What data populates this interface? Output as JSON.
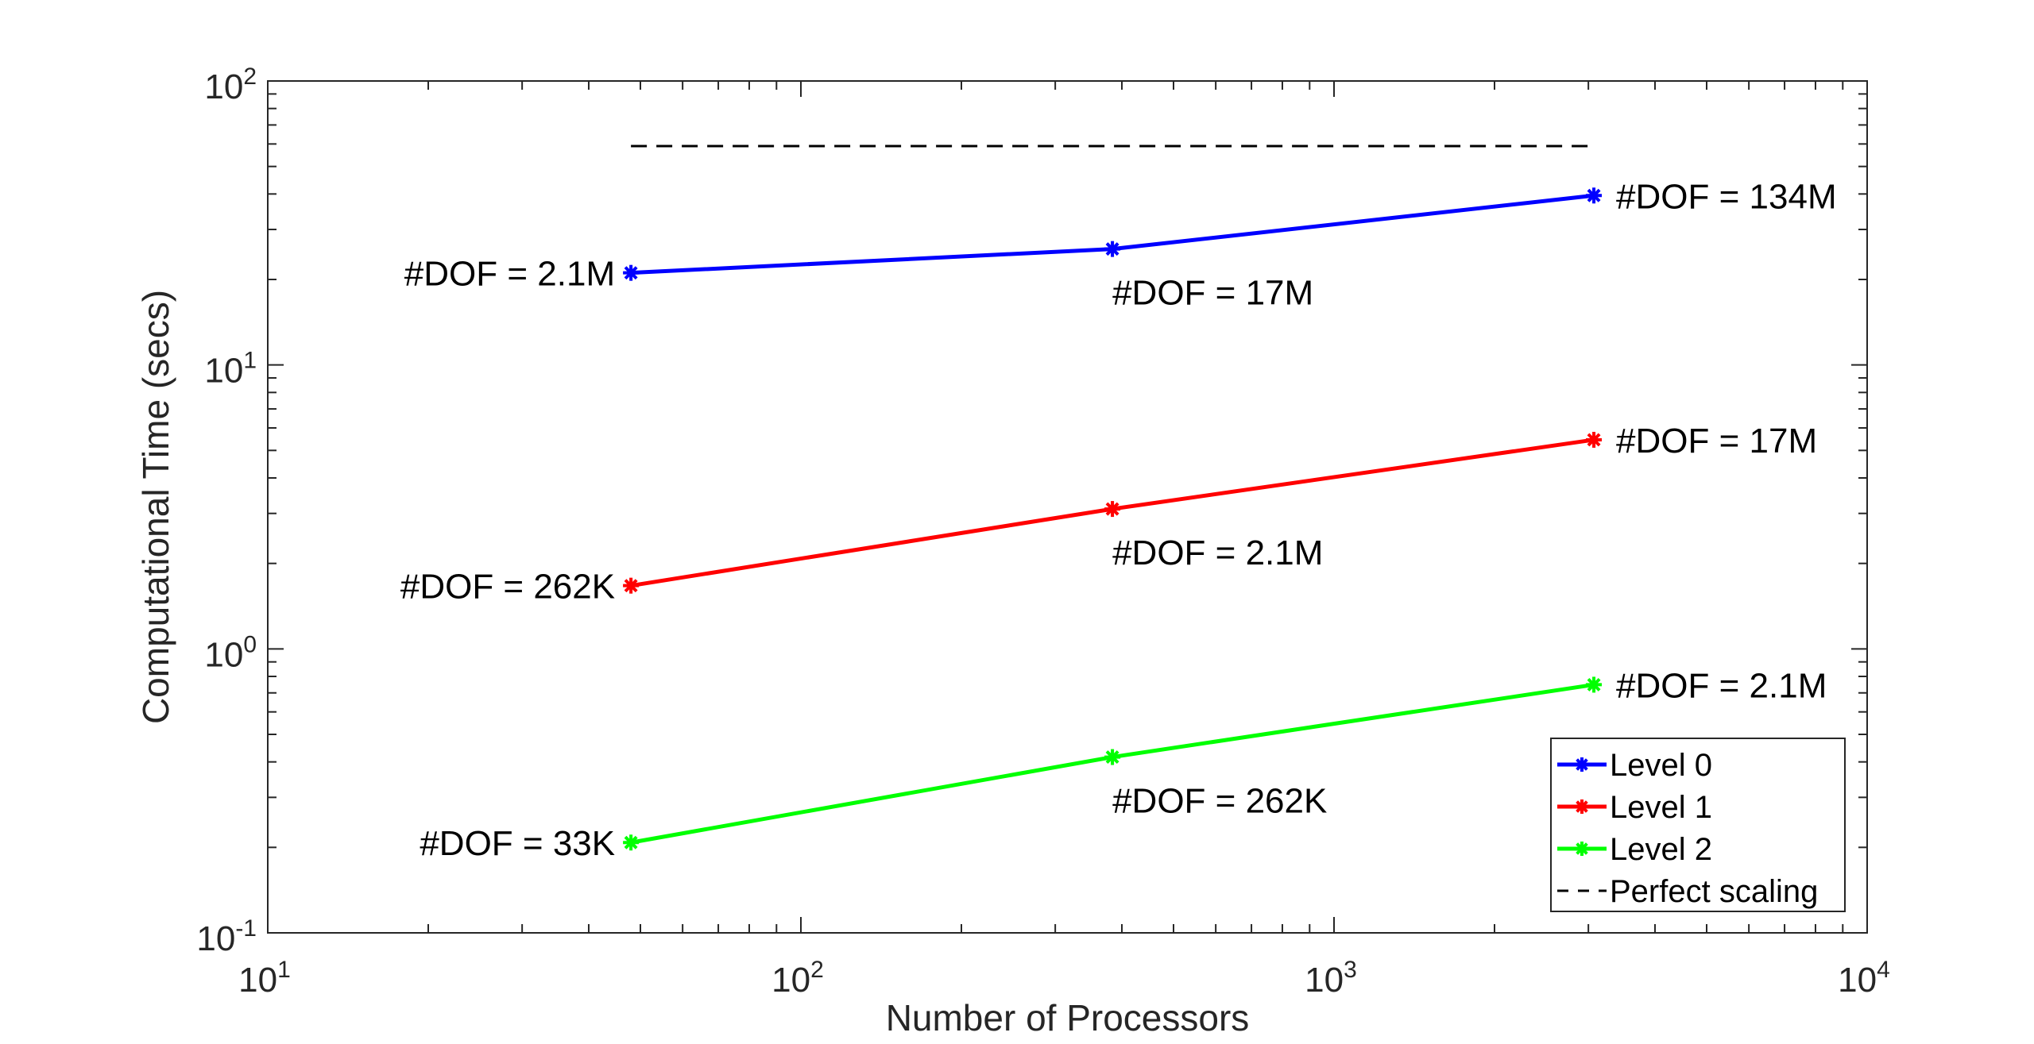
{
  "chart_data": {
    "type": "line",
    "xscale": "log",
    "yscale": "log",
    "xlim": [
      10,
      10000
    ],
    "ylim": [
      0.1,
      100
    ],
    "xlabel": "Number of Processors",
    "ylabel": "Computational Time (secs)",
    "x_ticks": [
      {
        "value": 10,
        "base": "10",
        "exp": "1"
      },
      {
        "value": 100,
        "base": "10",
        "exp": "2"
      },
      {
        "value": 1000,
        "base": "10",
        "exp": "3"
      },
      {
        "value": 10000,
        "base": "10",
        "exp": "4"
      }
    ],
    "y_ticks": [
      {
        "value": 0.1,
        "base": "10",
        "exp": "-1"
      },
      {
        "value": 1,
        "base": "10",
        "exp": "0"
      },
      {
        "value": 10,
        "base": "10",
        "exp": "1"
      },
      {
        "value": 100,
        "base": "10",
        "exp": "2"
      }
    ],
    "x": [
      48,
      384,
      3072
    ],
    "series": [
      {
        "name": "Level 0",
        "color": "#0000ff",
        "marker": "asterisk",
        "values": [
          21.1,
          25.6,
          39.5
        ],
        "labels": [
          "#DOF = 2.1M",
          "#DOF = 17M",
          "#DOF = 134M"
        ]
      },
      {
        "name": "Level 1",
        "color": "#ff0000",
        "marker": "asterisk",
        "values": [
          1.67,
          3.11,
          5.45
        ],
        "labels": [
          "#DOF = 262K",
          "#DOF = 2.1M",
          "#DOF = 17M"
        ]
      },
      {
        "name": "Level 2",
        "color": "#00ff00",
        "marker": "asterisk",
        "values": [
          0.208,
          0.416,
          0.748
        ],
        "labels": [
          "#DOF = 33K",
          "#DOF = 262K",
          "#DOF = 2.1M"
        ]
      }
    ],
    "reference_line": {
      "name": "Perfect scaling",
      "color": "#000000",
      "style": "dashed",
      "x": [
        48,
        3072
      ],
      "y": [
        59,
        59
      ]
    },
    "legend": {
      "placement": "bottom-right",
      "entries": [
        "Level 0",
        "Level 1",
        "Level 2",
        "Perfect scaling"
      ]
    },
    "grid": false
  }
}
